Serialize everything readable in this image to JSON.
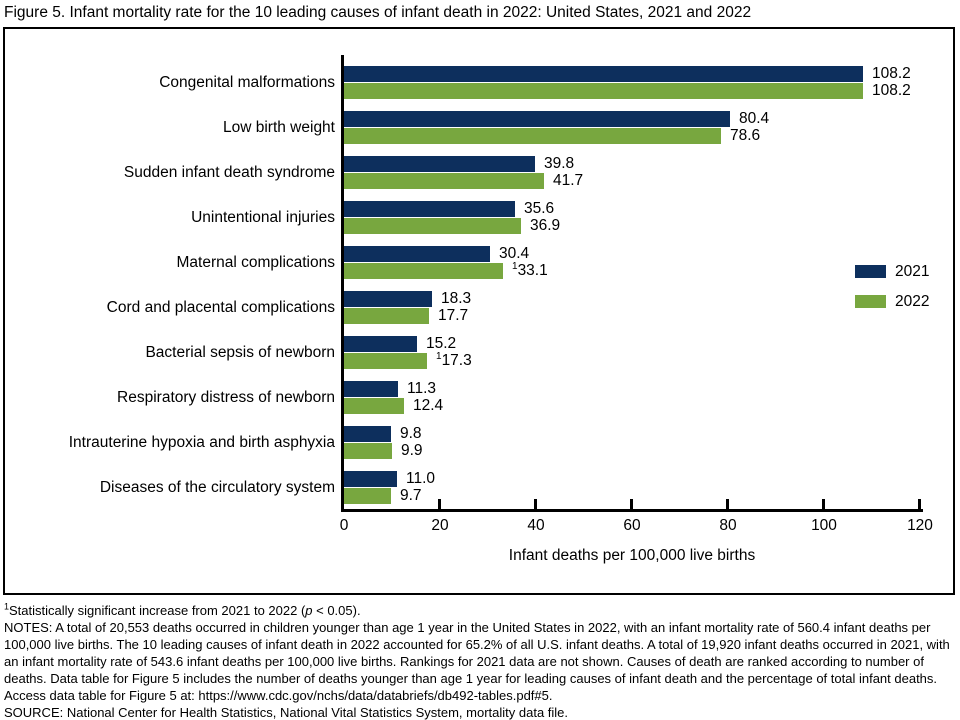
{
  "title": "Figure 5. Infant mortality rate for the 10 leading causes of infant death in 2022: United States, 2021 and 2022",
  "chart_data": {
    "type": "bar",
    "orientation": "horizontal",
    "title": "Figure 5. Infant mortality rate for the 10 leading causes of infant death in 2022: United States, 2021 and 2022",
    "categories": [
      "Congenital malformations",
      "Low birth weight",
      "Sudden infant death syndrome",
      "Unintentional injuries",
      "Maternal complications",
      "Cord and placental complications",
      "Bacterial sepsis of newborn",
      "Respiratory distress of newborn",
      "Intrauterine hypoxia and birth asphyxia",
      "Diseases of the circulatory system"
    ],
    "series": [
      {
        "name": "2021",
        "color": "#0d2f5d",
        "values": [
          108.2,
          80.4,
          39.8,
          35.6,
          30.4,
          18.3,
          15.2,
          11.3,
          9.8,
          11.0
        ],
        "labels": [
          "108.2",
          "80.4",
          "39.8",
          "35.6",
          "30.4",
          "18.3",
          "15.2",
          "11.3",
          "9.8",
          "11.0"
        ],
        "label_sups": [
          "",
          "",
          "",
          "",
          "",
          "",
          "",
          "",
          "",
          ""
        ]
      },
      {
        "name": "2022",
        "color": "#78a73f",
        "values": [
          108.2,
          78.6,
          41.7,
          36.9,
          33.1,
          17.7,
          17.3,
          12.4,
          9.9,
          9.7
        ],
        "labels": [
          "108.2",
          "78.6",
          "41.7",
          "36.9",
          "33.1",
          "17.7",
          "17.3",
          "12.4",
          "9.9",
          "9.7"
        ],
        "label_sups": [
          "",
          "",
          "",
          "",
          "1",
          "",
          "1",
          "",
          "",
          ""
        ]
      }
    ],
    "xlabel": "Infant deaths per 100,000 live births",
    "ylabel": "",
    "xlim": [
      0,
      120
    ],
    "xticks": [
      0,
      20,
      40,
      60,
      80,
      100,
      120
    ],
    "grid": false,
    "legend_position": "center-right"
  },
  "legend": {
    "items": [
      {
        "label": "2021",
        "color": "#0d2f5d"
      },
      {
        "label": "2022",
        "color": "#78a73f"
      }
    ]
  },
  "footnotes": {
    "note1_sup": "1",
    "note1_pre": "Statistically significant increase from 2021 to 2022 (",
    "note1_italic": "p",
    "note1_post": " < 0.05).",
    "notes": "NOTES: A total of 20,553 deaths occurred in children younger than age 1 year in the United States in 2022, with an infant mortality rate of 560.4 infant deaths per 100,000 live births. The 10 leading causes of infant death in 2022 accounted for 65.2% of all U.S. infant deaths. A total of 19,920 infant deaths occurred in 2021, with an infant mortality rate of 543.6 infant deaths per 100,000 live births. Rankings for 2021 data are not shown. Causes of death are ranked according to number of deaths. Data table for Figure 5 includes the number of deaths younger than age 1 year for leading causes of infant death and the percentage of total infant deaths. Access data table for Figure 5 at: https://www.cdc.gov/nchs/data/databriefs/db492-tables.pdf#5.",
    "source": "SOURCE: National Center for Health Statistics, National Vital Statistics System, mortality data file."
  }
}
